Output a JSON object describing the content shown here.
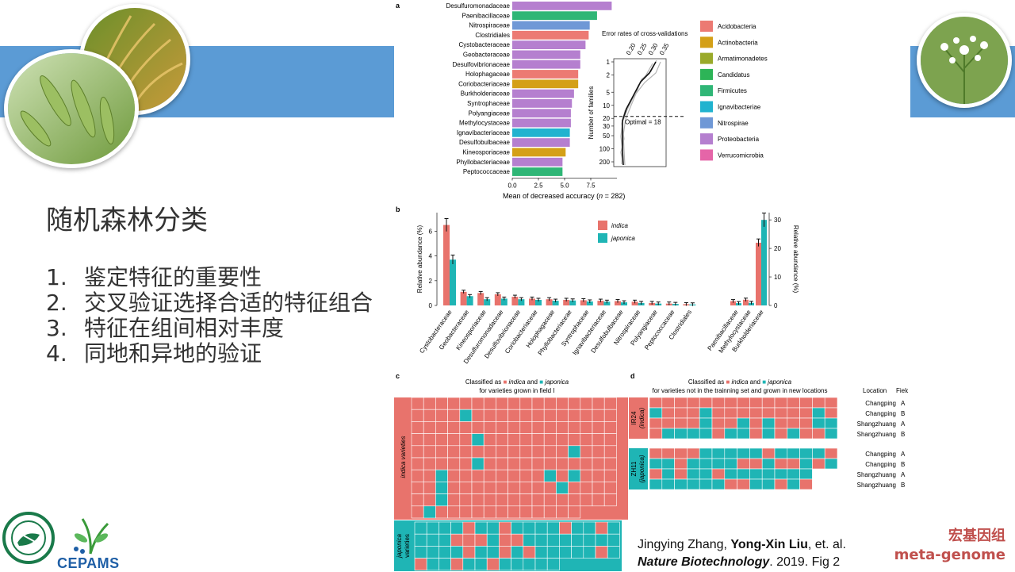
{
  "slide": {
    "title": "随机森林分类",
    "points": [
      {
        "num": "1.",
        "text": "鉴定特征的重要性"
      },
      {
        "num": "2.",
        "text": "交叉验证选择合适的特征组合"
      },
      {
        "num": "3.",
        "text": "特征在组间相对丰度"
      },
      {
        "num": "4.",
        "text": "同地和异地的验证"
      }
    ]
  },
  "citation": {
    "authors_prefix": "Jingying Zhang, ",
    "authors_bold": "Yong-Xin Liu",
    "authors_suffix": ", et. al.",
    "journal": "Nature Biotechnology",
    "rest": ". 2019. Fig 2"
  },
  "brand": {
    "line1": "宏基因组",
    "line2": "meta-genome"
  },
  "logos": {
    "left_logo": "institute-seal-logo",
    "cepams": "CEPAMS"
  },
  "colors": {
    "band": "#5b9bd5",
    "indica": "#e8736c",
    "japonica": "#1fb5b5",
    "brand": "#c0504d"
  },
  "figure_a": {
    "panel_label": "a",
    "families": [
      "Desulfuromonadaceae",
      "Paenibacillaceae",
      "Nitrospiraceae",
      "Clostridiales",
      "Cystobacteraceae",
      "Geobacteraceae",
      "Desulfovibrionaceae",
      "Holophagaceae",
      "Coriobacteriaceae",
      "Burkholderiaceae",
      "Syntrophaceae",
      "Polyangiaceae",
      "Methylocystaceae",
      "Ignavibacteriaceae",
      "Desulfobulbaceae",
      "Kineosporiaceae",
      "Phyllobacteriaceae",
      "Peptococcaceae"
    ],
    "values": [
      9.5,
      8.1,
      7.4,
      7.3,
      7.0,
      6.5,
      6.5,
      6.3,
      6.3,
      5.9,
      5.7,
      5.6,
      5.6,
      5.5,
      5.5,
      5.1,
      4.8,
      4.8
    ],
    "phyla": [
      7,
      4,
      6,
      0,
      7,
      7,
      7,
      0,
      1,
      7,
      7,
      7,
      7,
      5,
      7,
      1,
      7,
      4
    ],
    "xticks": [
      "0.0",
      "2.5",
      "5.0",
      "7.5"
    ],
    "xmax": 10,
    "xlabel": "Mean of decreased accuracy (",
    "xlabel_n": "n",
    "xlabel_end": " = 282)",
    "legend": [
      "Acidobacteria",
      "Actinobacteria",
      "Armatimonadetes",
      "Candidatus",
      "Firmicutes",
      "Ignavibacteriae",
      "Nitrospirae",
      "Proteobacteria",
      "Verrucomicrobia"
    ],
    "legend_colors": [
      "#ec7a73",
      "#d4a017",
      "#9aaa2a",
      "#2db457",
      "#2fb676",
      "#21b3cf",
      "#6f98d6",
      "#b57fcf",
      "#e565a8"
    ],
    "inset_title": "Error rates of cross-validations",
    "inset_xticks": [
      "0.20",
      "0.25",
      "0.30",
      "0.35"
    ],
    "inset_yticks": [
      "1",
      "2",
      "5",
      "10",
      "20",
      "30",
      "50",
      "100",
      "200"
    ],
    "inset_ylabel": "Number of families",
    "optimal_label": "Optimal = 18"
  },
  "figure_b": {
    "panel_label": "b",
    "categories": [
      "Cystobacteraceae",
      "Geobacteraceae",
      "Kineosporiaceae",
      "Desulfuromonadaceae",
      "Desulfovibrionaceae",
      "Coriobacteriaceae",
      "Holophagaceae",
      "Phyllobacteriaceae",
      "Syntrophaceae",
      "Ignavibacteriaceae",
      "Desulfobulbaceae",
      "Nitrospiraceae",
      "Polyangiaceae",
      "Peptococcaceae",
      "Clostridiales"
    ],
    "indica": [
      6.5,
      1.1,
      1.0,
      0.9,
      0.7,
      0.55,
      0.5,
      0.45,
      0.42,
      0.38,
      0.35,
      0.3,
      0.2,
      0.15,
      0.1
    ],
    "japonica": [
      3.7,
      0.75,
      0.5,
      0.55,
      0.5,
      0.45,
      0.38,
      0.4,
      0.32,
      0.3,
      0.25,
      0.2,
      0.15,
      0.12,
      0.08
    ],
    "ylim": [
      0,
      7.5
    ],
    "yticks": [
      "0",
      "2",
      "4",
      "6"
    ],
    "ylabel": "Relative abundance (%)",
    "right_categories": [
      "Paenibacillaceae",
      "Methylocystaceae",
      "Burkholderiaceae"
    ],
    "right_indica": [
      1.5,
      2.0,
      22.0
    ],
    "right_japonica": [
      0.8,
      0.9,
      30.0
    ],
    "right_ylim": [
      0,
      32
    ],
    "right_yticks": [
      "0",
      "10",
      "20",
      "30"
    ],
    "right_ylabel": "Relative abundance (%)",
    "legend": [
      "indica",
      "japonica"
    ]
  },
  "figure_c": {
    "panel_label": "c",
    "title_prefix": "Classified as",
    "title_indica": "indica",
    "title_and": "and",
    "title_japonica": "japonica",
    "subtitle": "for varieties grown in field I",
    "indica_label": "indica varieties",
    "japonica_label1": "japonica",
    "japonica_label2": "varieties"
  },
  "figure_d": {
    "panel_label": "d",
    "title_prefix": "Classified as",
    "title_indica": "indica",
    "title_and": "and",
    "title_japonica": "japonica",
    "subtitle": "for varieties not in the trainning set and grown in new locations",
    "location_header": "Location",
    "field_header": "Field",
    "group1_label1": "IR24",
    "group1_label2": "(indica)",
    "group2_label1": "ZH11",
    "group2_label2": "(japonica)",
    "rows": [
      {
        "location": "Changping",
        "field": "A"
      },
      {
        "location": "Changping",
        "field": "B"
      },
      {
        "location": "Shangzhuang",
        "field": "A"
      },
      {
        "location": "Shangzhuang",
        "field": "B"
      }
    ]
  }
}
